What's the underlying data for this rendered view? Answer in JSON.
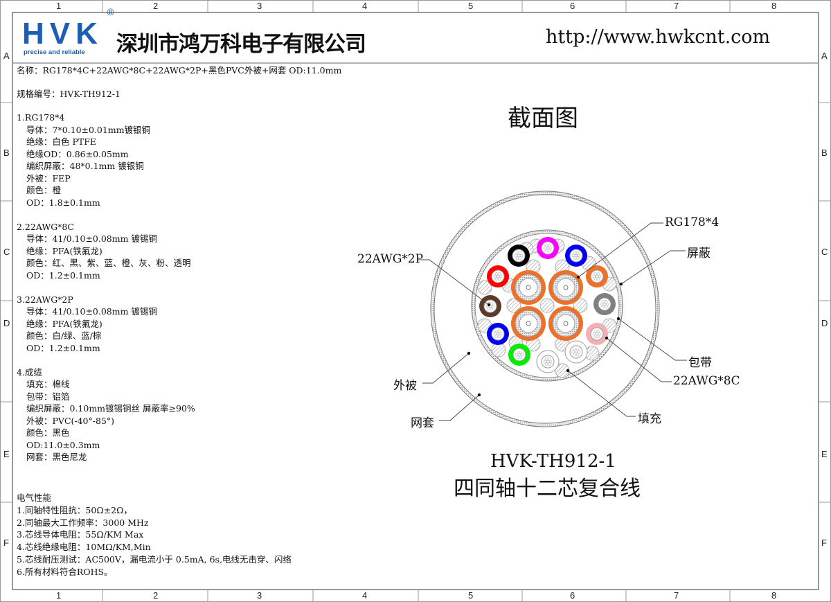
{
  "frame": {
    "columns": [
      "1",
      "2",
      "3",
      "4",
      "5",
      "6",
      "7",
      "8"
    ],
    "rows": [
      "A",
      "B",
      "C",
      "D",
      "E",
      "F"
    ]
  },
  "header": {
    "logo_text": "HVK",
    "logo_registered": "®",
    "logo_tagline": "precise and reliable",
    "company_name": "深圳市鸿万科电子有限公司",
    "website": "http://www.hwkcnt.com",
    "brand_color": "#1a5fb4"
  },
  "spec": {
    "name_line": "名称：RG178*4C+22AWG*8C+22AWG*2P+黑色PVC外被+网套 OD:11.0mm",
    "code_line": "规格编号：HVK-TH912-1",
    "sections": [
      {
        "title": "1.RG178*4",
        "items": [
          "导体：7*0.10±0.01mm镀银铜",
          "绝缘：白色 PTFE",
          "绝缘OD：0.86±0.05mm",
          "编织屏蔽：48*0.1mm 镀银铜",
          "外被：FEP",
          "颜色：橙",
          "OD：1.8±0.1mm"
        ]
      },
      {
        "title": "2.22AWG*8C",
        "items": [
          "导体：41/0.10±0.08mm 镀锡铜",
          "绝缘：PFA(铁氟龙)",
          "颜色：红、黑、紫、蓝、橙、灰、粉、透明",
          "OD：1.2±0.1mm"
        ]
      },
      {
        "title": "3.22AWG*2P",
        "items": [
          "导体：41/0.10±0.08mm 镀锡铜",
          "绝缘：PFA(铁氟龙)",
          "颜色：白/绿、蓝/棕",
          "OD：1.2±0.1mm"
        ]
      },
      {
        "title": "4.成缆",
        "items": [
          "填充：棉线",
          "包带：铝箔",
          "编织屏蔽：0.10mm镀锡铜丝   屏蔽率≥90%",
          "外被：PVC(-40°-85°)",
          "颜色：黑色",
          "OD:11.0±0.3mm",
          "网套：黑色尼龙"
        ]
      }
    ],
    "electrical_title": "电气性能",
    "electrical": [
      "1.同轴特性阻抗：50Ω±2Ω，",
      "2.同轴最大工作频率：3000 MHz",
      "3.芯线导体电阻：55Ω/KM Max",
      "4.芯线绝缘电阻：10MΩ/KM,Min",
      "5.芯线耐压测试：AC500V，漏电流小于 0.5mA, 6s,电线无击穿、闪络",
      "6.所有材料符合ROHS。"
    ]
  },
  "diagram": {
    "title": "截面图",
    "labels": {
      "rg178": "RG178*4",
      "shield": "屏蔽",
      "pair": "22AWG*2P",
      "tape": "包带",
      "awg8c": "22AWG*8C",
      "jacket": "外被",
      "mesh": "网套",
      "filler": "填充"
    },
    "part_number": "HVK-TH912-1",
    "product_name": "四同轴十二芯复合线",
    "colors": {
      "coax_orange": "#f07028",
      "red": "#ff0000",
      "black": "#000000",
      "magenta": "#ff00ff",
      "blue": "#0000ee",
      "orange": "#f07028",
      "gray": "#808080",
      "pink": "#f4b0b4",
      "brown": "#5c3a2a",
      "green": "#00ee00",
      "white": "#ffffff"
    }
  }
}
